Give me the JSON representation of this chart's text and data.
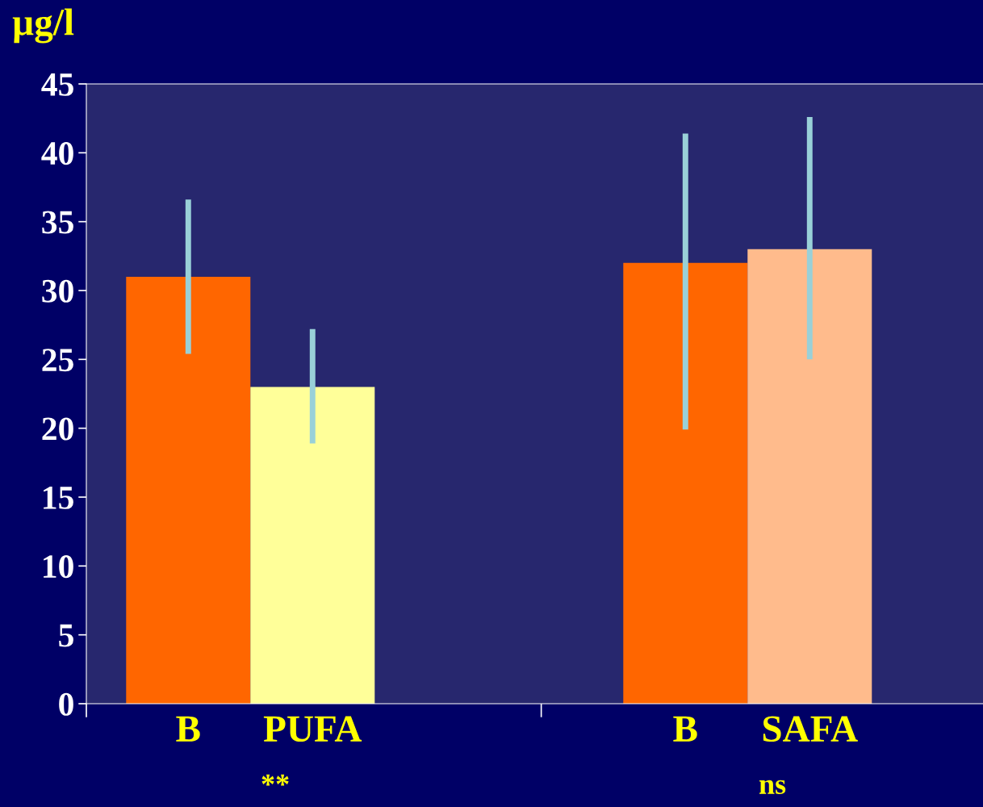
{
  "chart_data": {
    "type": "bar",
    "ylabel": "µg/l",
    "categories": [
      "B",
      "PUFA",
      null,
      null,
      "B",
      "SAFA"
    ],
    "values": [
      31,
      23,
      null,
      null,
      32,
      33
    ],
    "colors": [
      "#ff6600",
      "#ffff99",
      null,
      null,
      "#ff6600",
      "#ffbb8c"
    ],
    "errors": [
      [
        25.4,
        36.6
      ],
      [
        18.9,
        27.2
      ],
      null,
      null,
      [
        19.9,
        41.4
      ],
      [
        25.0,
        42.6
      ]
    ],
    "ylim": [
      0,
      45
    ],
    "yticks": [
      0,
      5,
      10,
      15,
      20,
      25,
      30,
      35,
      40,
      45
    ],
    "grid": false,
    "annotations": [
      "**",
      "ns"
    ]
  }
}
